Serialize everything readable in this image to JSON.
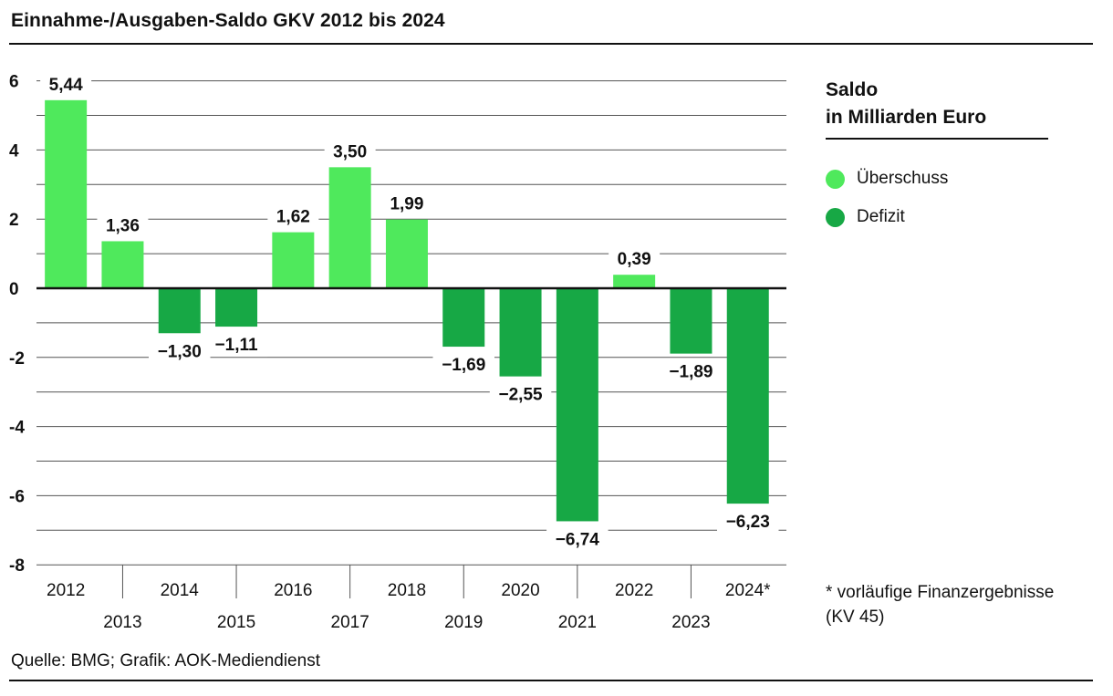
{
  "title": "Einnahme-/Ausgaben-Saldo GKV 2012 bis 2024",
  "legend": {
    "title_line1": "Saldo",
    "title_line2": "in Milliarden Euro",
    "items": [
      {
        "label": "Überschuss",
        "color": "#4fe95c"
      },
      {
        "label": "Defizit",
        "color": "#17a845"
      }
    ]
  },
  "footnote": {
    "line1": "* vorläufige Finanzergebnisse",
    "line2": "(KV 45)"
  },
  "source": "Quelle: BMG; Grafik: AOK-Mediendienst",
  "chart_data": {
    "type": "bar",
    "categories": [
      "2012",
      "2013",
      "2014",
      "2015",
      "2016",
      "2017",
      "2018",
      "2019",
      "2020",
      "2021",
      "2022",
      "2023",
      "2024*"
    ],
    "values": [
      5.44,
      1.36,
      -1.3,
      -1.11,
      1.62,
      3.5,
      1.99,
      -1.69,
      -2.55,
      -6.74,
      0.39,
      -1.89,
      -6.23
    ],
    "value_labels": [
      "5,44",
      "1,36",
      "−1,30",
      "−1,11",
      "1,62",
      "3,50",
      "1,99",
      "−1,69",
      "−2,55",
      "−6,74",
      "0,39",
      "−1,89",
      "−6,23"
    ],
    "y_ticks": [
      6,
      4,
      2,
      0,
      -2,
      -4,
      -6,
      -8
    ],
    "y_tick_labels": [
      "6",
      "4",
      "2",
      "0",
      "-2",
      "-4",
      "-6",
      "-8"
    ],
    "ylim": [
      -8,
      6
    ],
    "grid": true,
    "legend_position": "right",
    "colors": {
      "positive": "#4fe95c",
      "negative": "#17a845",
      "grid": "#555555",
      "axis": "#111111"
    }
  }
}
